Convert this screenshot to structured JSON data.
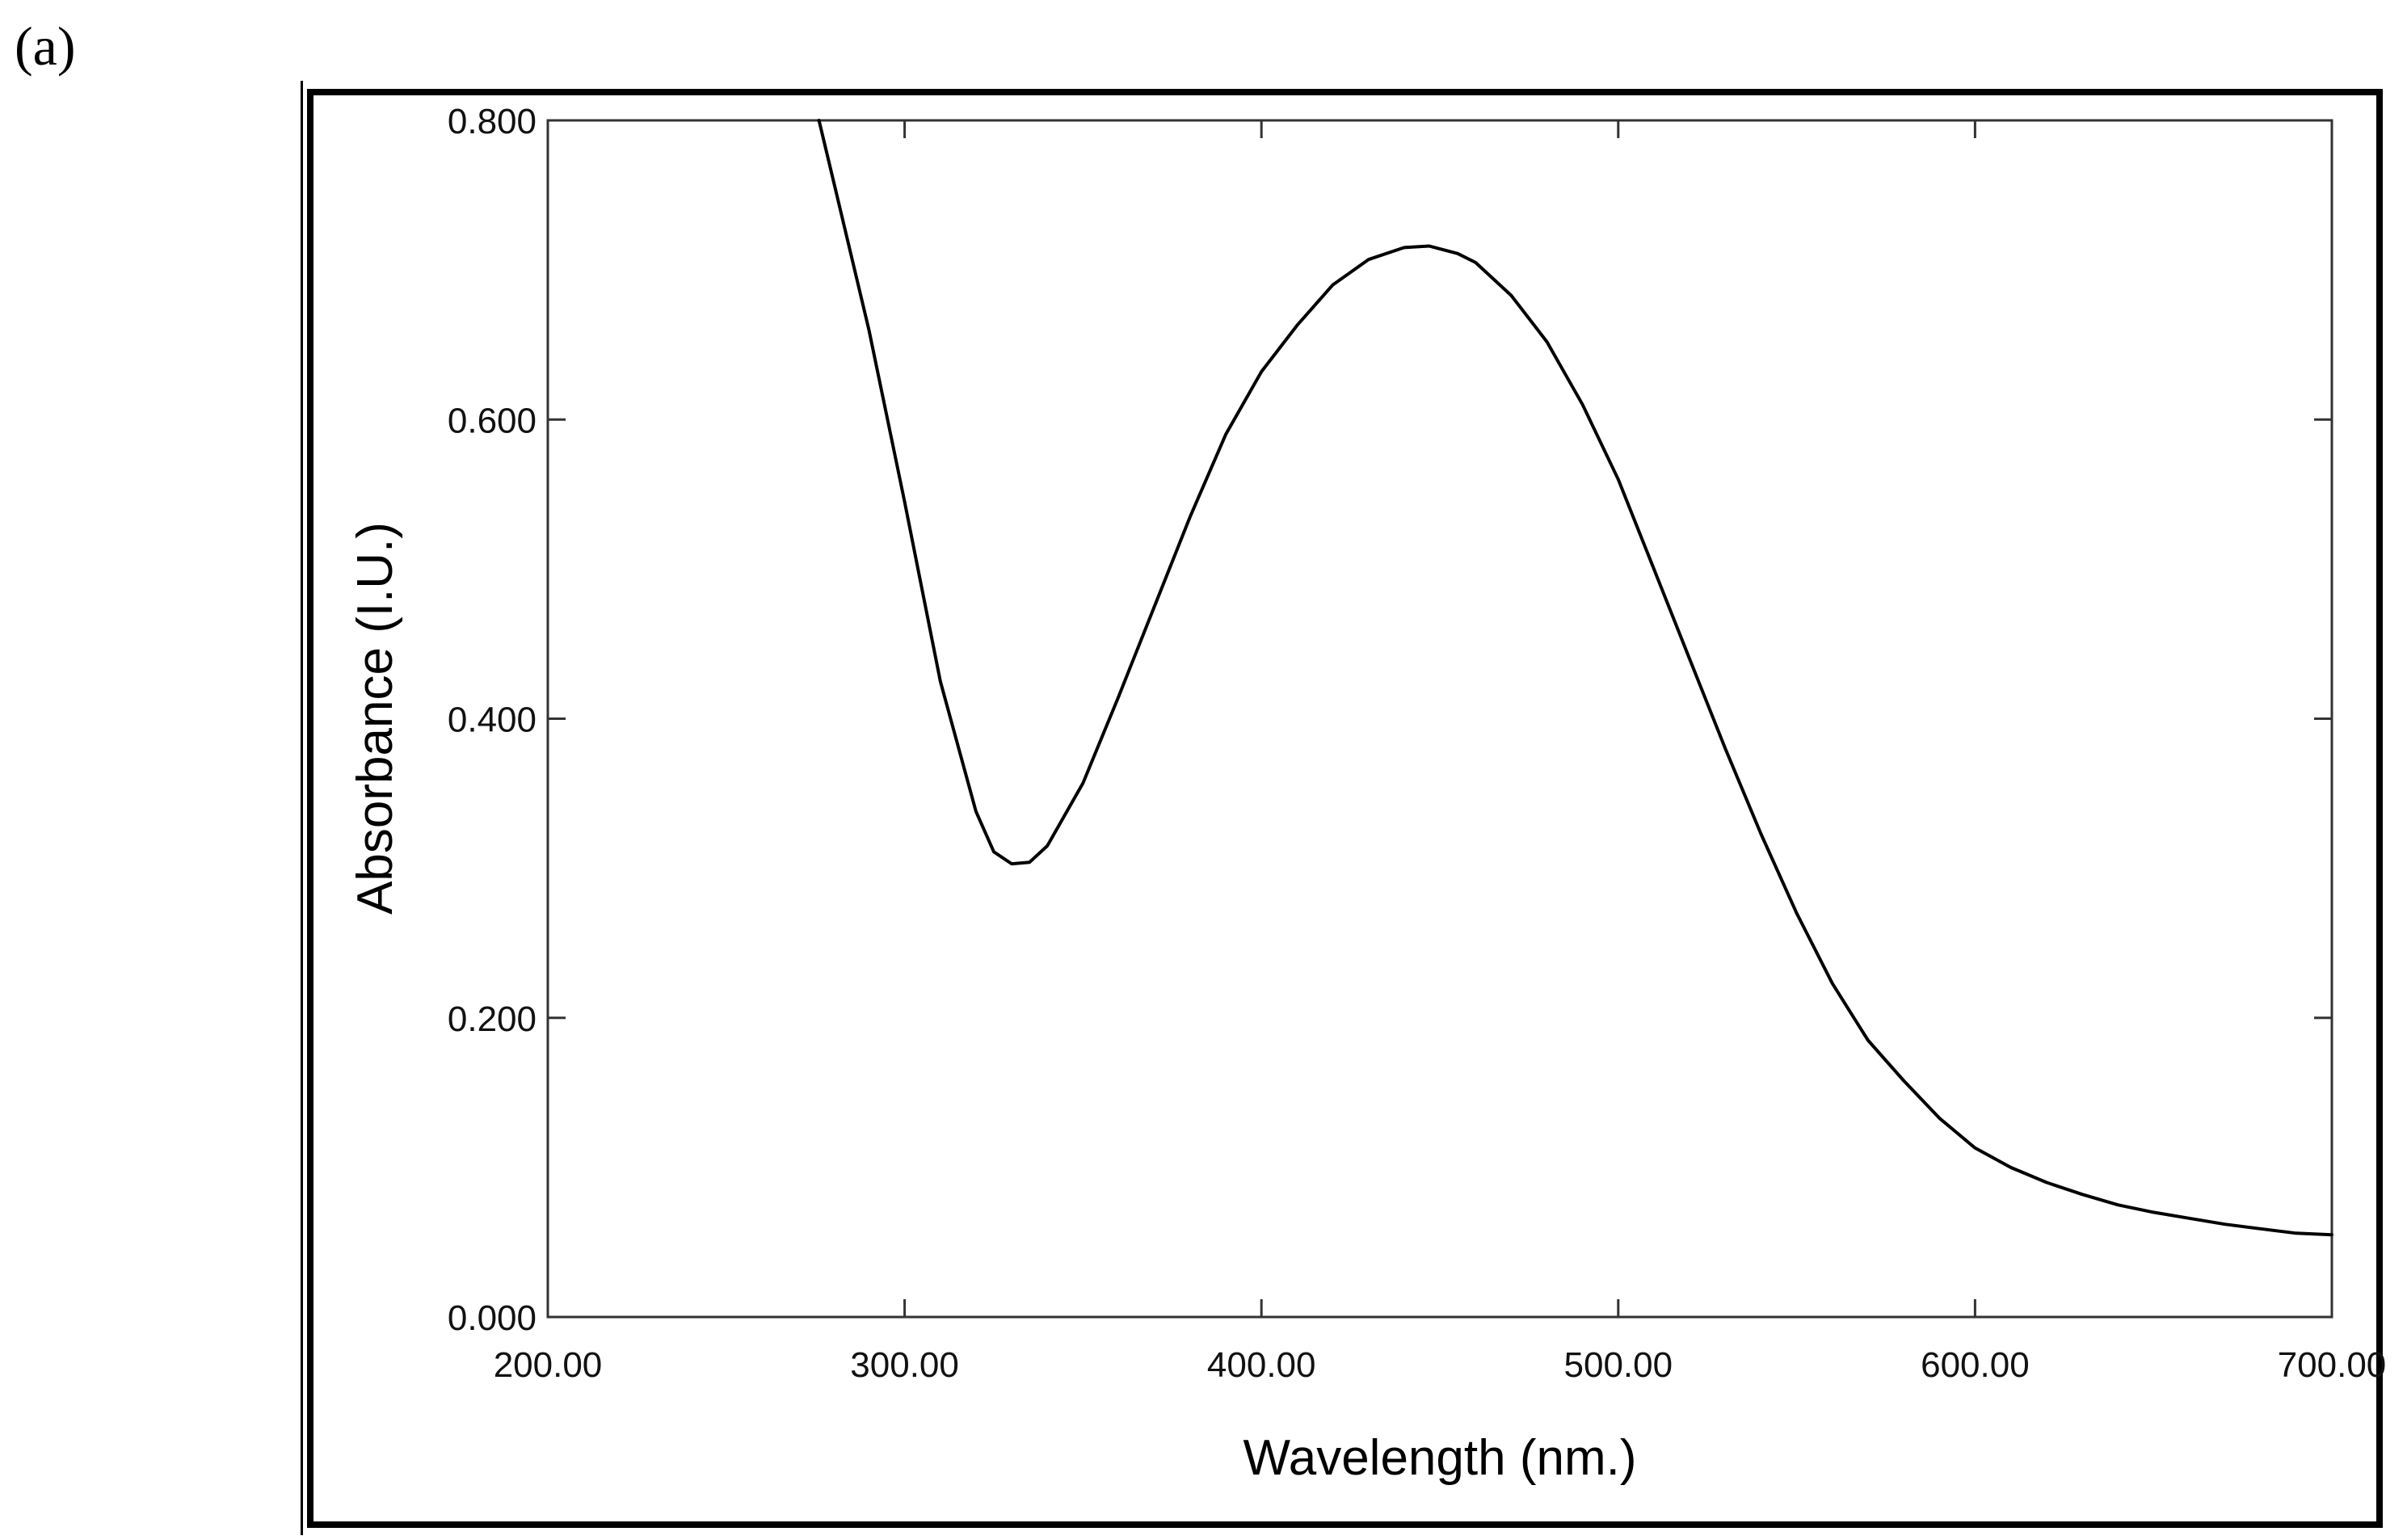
{
  "figure": {
    "panel_label": "(a)"
  },
  "chart_data": {
    "type": "line",
    "title": "",
    "xlabel": "Wavelength (nm.)",
    "ylabel": "Absorbance (I.U.)",
    "xlim": [
      200,
      700
    ],
    "ylim": [
      0,
      0.8
    ],
    "x_ticks": [
      200,
      300,
      400,
      500,
      600,
      700
    ],
    "x_tick_labels": [
      "200.00",
      "300.00",
      "400.00",
      "500.00",
      "600.00",
      "700.00"
    ],
    "y_ticks": [
      0,
      0.2,
      0.4,
      0.6,
      0.8
    ],
    "y_tick_labels": [
      "0.000",
      "0.200",
      "0.400",
      "0.600",
      "0.800"
    ],
    "grid": false,
    "legend": "none",
    "series": [
      {
        "color": "#000000",
        "x": [
          276,
          280,
          290,
          300,
          310,
          320,
          325,
          330,
          335,
          340,
          350,
          360,
          370,
          380,
          390,
          400,
          410,
          420,
          430,
          440,
          447,
          455,
          460,
          470,
          480,
          490,
          500,
          510,
          520,
          530,
          540,
          550,
          560,
          570,
          580,
          590,
          600,
          610,
          620,
          630,
          640,
          650,
          660,
          670,
          680,
          690,
          700
        ],
        "y": [
          0.8,
          0.76,
          0.66,
          0.545,
          0.425,
          0.338,
          0.311,
          0.303,
          0.304,
          0.315,
          0.357,
          0.415,
          0.475,
          0.535,
          0.59,
          0.632,
          0.663,
          0.69,
          0.707,
          0.715,
          0.716,
          0.711,
          0.705,
          0.683,
          0.652,
          0.61,
          0.56,
          0.5,
          0.44,
          0.38,
          0.323,
          0.27,
          0.223,
          0.185,
          0.158,
          0.133,
          0.113,
          0.1,
          0.09,
          0.082,
          0.075,
          0.07,
          0.066,
          0.062,
          0.059,
          0.056,
          0.055
        ]
      }
    ]
  }
}
